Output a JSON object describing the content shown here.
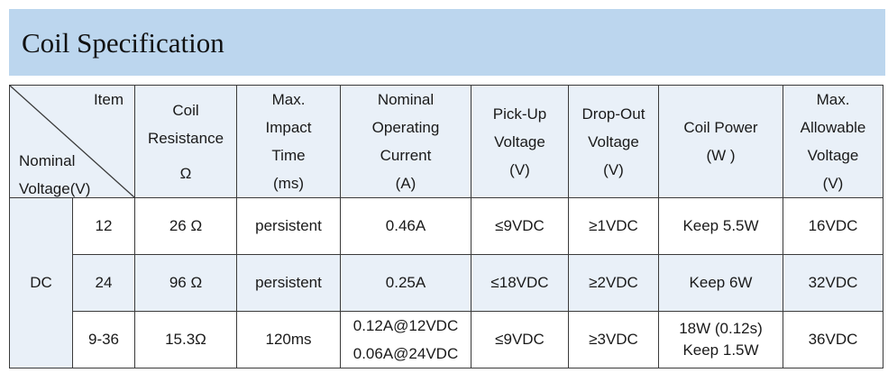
{
  "title": "Coil Specification",
  "header": {
    "item": "Item",
    "nominal_voltage": [
      "Nominal",
      "Voltage(V)"
    ],
    "columns": [
      [
        "Coil",
        "Resistance",
        "Ω"
      ],
      [
        "Max.",
        "Impact",
        "Time",
        "(ms)"
      ],
      [
        "Nominal",
        "Operating",
        "Current",
        "(A)"
      ],
      [
        "Pick-Up",
        "Voltage",
        "(V)"
      ],
      [
        "Drop-Out",
        "Voltage",
        "(V)"
      ],
      [
        "Coil Power",
        "(W )"
      ],
      [
        "Max.",
        "Allowable",
        "Voltage",
        "(V)"
      ]
    ]
  },
  "group_label": "DC",
  "rows": [
    {
      "voltage": "12",
      "resistance": "26 Ω",
      "impact_time": "persistent",
      "current": [
        "0.46A"
      ],
      "pickup": "≤9VDC",
      "dropout": "≥1VDC",
      "power": [
        "Keep 5.5W"
      ],
      "max_voltage": "16VDC"
    },
    {
      "voltage": "24",
      "resistance": "96 Ω",
      "impact_time": "persistent",
      "current": [
        "0.25A"
      ],
      "pickup": "≤18VDC",
      "dropout": "≥2VDC",
      "power": [
        "Keep 6W"
      ],
      "max_voltage": "32VDC"
    },
    {
      "voltage": "9-36",
      "resistance": "15.3Ω",
      "impact_time": "120ms",
      "current": [
        "0.12A@12VDC",
        "0.06A@24VDC"
      ],
      "pickup": "≤9VDC",
      "dropout": "≥3VDC",
      "power": [
        "18W (0.12s)",
        "Keep 1.5W"
      ],
      "max_voltage": "36VDC"
    }
  ]
}
